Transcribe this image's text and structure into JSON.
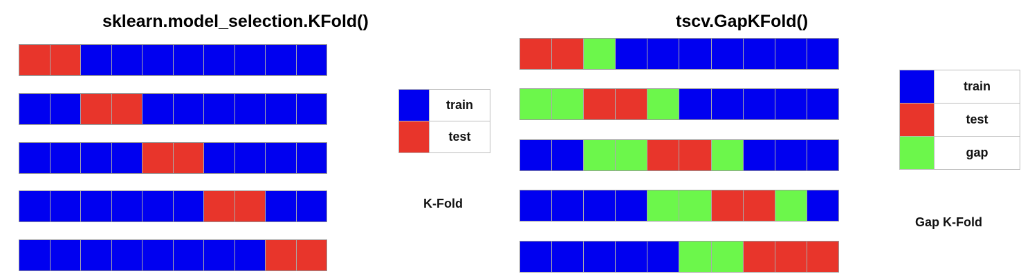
{
  "colors": {
    "train": "#0000f0",
    "test": "#e8352b",
    "gap": "#6cf74b"
  },
  "kfold": {
    "title": "sklearn.model_selection.KFold()",
    "caption": "K-Fold",
    "legend": [
      {
        "key": "train",
        "label": "train"
      },
      {
        "key": "test",
        "label": "test"
      }
    ],
    "rows": [
      [
        "test",
        "test",
        "train",
        "train",
        "train",
        "train",
        "train",
        "train",
        "train",
        "train"
      ],
      [
        "train",
        "train",
        "test",
        "test",
        "train",
        "train",
        "train",
        "train",
        "train",
        "train"
      ],
      [
        "train",
        "train",
        "train",
        "train",
        "test",
        "test",
        "train",
        "train",
        "train",
        "train"
      ],
      [
        "train",
        "train",
        "train",
        "train",
        "train",
        "train",
        "test",
        "test",
        "train",
        "train"
      ],
      [
        "train",
        "train",
        "train",
        "train",
        "train",
        "train",
        "train",
        "train",
        "test",
        "test"
      ]
    ]
  },
  "gapkfold": {
    "title": "tscv.GapKFold()",
    "caption": "Gap K-Fold",
    "legend": [
      {
        "key": "train",
        "label": "train"
      },
      {
        "key": "test",
        "label": "test"
      },
      {
        "key": "gap",
        "label": "gap"
      }
    ],
    "rows": [
      [
        "test",
        "test",
        "gap",
        "train",
        "train",
        "train",
        "train",
        "train",
        "train",
        "train"
      ],
      [
        "gap",
        "gap",
        "test",
        "test",
        "gap",
        "train",
        "train",
        "train",
        "train",
        "train"
      ],
      [
        "train",
        "train",
        "gap",
        "gap",
        "test",
        "test",
        "gap",
        "train",
        "train",
        "train"
      ],
      [
        "train",
        "train",
        "train",
        "train",
        "gap",
        "gap",
        "test",
        "test",
        "gap",
        "train"
      ],
      [
        "train",
        "train",
        "train",
        "train",
        "train",
        "gap",
        "gap",
        "test",
        "test",
        "test"
      ]
    ]
  }
}
